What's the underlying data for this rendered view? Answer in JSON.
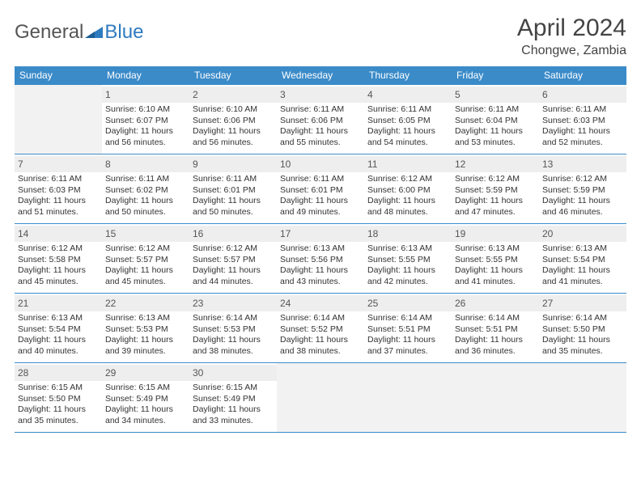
{
  "brand": {
    "part1": "General",
    "part2": "Blue"
  },
  "title": "April 2024",
  "location": "Chongwe, Zambia",
  "colors": {
    "header_bg": "#3b8bc9",
    "header_text": "#ffffff",
    "daynum_bg": "#eeeeee",
    "blank_bg": "#f2f2f2",
    "border": "#3b8bc9",
    "body_text": "#333333",
    "title_text": "#444444",
    "brand_blue": "#2f7bbf"
  },
  "weekdays": [
    "Sunday",
    "Monday",
    "Tuesday",
    "Wednesday",
    "Thursday",
    "Friday",
    "Saturday"
  ],
  "weeks": [
    [
      null,
      {
        "n": "1",
        "sr": "Sunrise: 6:10 AM",
        "ss": "Sunset: 6:07 PM",
        "d1": "Daylight: 11 hours",
        "d2": "and 56 minutes."
      },
      {
        "n": "2",
        "sr": "Sunrise: 6:10 AM",
        "ss": "Sunset: 6:06 PM",
        "d1": "Daylight: 11 hours",
        "d2": "and 56 minutes."
      },
      {
        "n": "3",
        "sr": "Sunrise: 6:11 AM",
        "ss": "Sunset: 6:06 PM",
        "d1": "Daylight: 11 hours",
        "d2": "and 55 minutes."
      },
      {
        "n": "4",
        "sr": "Sunrise: 6:11 AM",
        "ss": "Sunset: 6:05 PM",
        "d1": "Daylight: 11 hours",
        "d2": "and 54 minutes."
      },
      {
        "n": "5",
        "sr": "Sunrise: 6:11 AM",
        "ss": "Sunset: 6:04 PM",
        "d1": "Daylight: 11 hours",
        "d2": "and 53 minutes."
      },
      {
        "n": "6",
        "sr": "Sunrise: 6:11 AM",
        "ss": "Sunset: 6:03 PM",
        "d1": "Daylight: 11 hours",
        "d2": "and 52 minutes."
      }
    ],
    [
      {
        "n": "7",
        "sr": "Sunrise: 6:11 AM",
        "ss": "Sunset: 6:03 PM",
        "d1": "Daylight: 11 hours",
        "d2": "and 51 minutes."
      },
      {
        "n": "8",
        "sr": "Sunrise: 6:11 AM",
        "ss": "Sunset: 6:02 PM",
        "d1": "Daylight: 11 hours",
        "d2": "and 50 minutes."
      },
      {
        "n": "9",
        "sr": "Sunrise: 6:11 AM",
        "ss": "Sunset: 6:01 PM",
        "d1": "Daylight: 11 hours",
        "d2": "and 50 minutes."
      },
      {
        "n": "10",
        "sr": "Sunrise: 6:11 AM",
        "ss": "Sunset: 6:01 PM",
        "d1": "Daylight: 11 hours",
        "d2": "and 49 minutes."
      },
      {
        "n": "11",
        "sr": "Sunrise: 6:12 AM",
        "ss": "Sunset: 6:00 PM",
        "d1": "Daylight: 11 hours",
        "d2": "and 48 minutes."
      },
      {
        "n": "12",
        "sr": "Sunrise: 6:12 AM",
        "ss": "Sunset: 5:59 PM",
        "d1": "Daylight: 11 hours",
        "d2": "and 47 minutes."
      },
      {
        "n": "13",
        "sr": "Sunrise: 6:12 AM",
        "ss": "Sunset: 5:59 PM",
        "d1": "Daylight: 11 hours",
        "d2": "and 46 minutes."
      }
    ],
    [
      {
        "n": "14",
        "sr": "Sunrise: 6:12 AM",
        "ss": "Sunset: 5:58 PM",
        "d1": "Daylight: 11 hours",
        "d2": "and 45 minutes."
      },
      {
        "n": "15",
        "sr": "Sunrise: 6:12 AM",
        "ss": "Sunset: 5:57 PM",
        "d1": "Daylight: 11 hours",
        "d2": "and 45 minutes."
      },
      {
        "n": "16",
        "sr": "Sunrise: 6:12 AM",
        "ss": "Sunset: 5:57 PM",
        "d1": "Daylight: 11 hours",
        "d2": "and 44 minutes."
      },
      {
        "n": "17",
        "sr": "Sunrise: 6:13 AM",
        "ss": "Sunset: 5:56 PM",
        "d1": "Daylight: 11 hours",
        "d2": "and 43 minutes."
      },
      {
        "n": "18",
        "sr": "Sunrise: 6:13 AM",
        "ss": "Sunset: 5:55 PM",
        "d1": "Daylight: 11 hours",
        "d2": "and 42 minutes."
      },
      {
        "n": "19",
        "sr": "Sunrise: 6:13 AM",
        "ss": "Sunset: 5:55 PM",
        "d1": "Daylight: 11 hours",
        "d2": "and 41 minutes."
      },
      {
        "n": "20",
        "sr": "Sunrise: 6:13 AM",
        "ss": "Sunset: 5:54 PM",
        "d1": "Daylight: 11 hours",
        "d2": "and 41 minutes."
      }
    ],
    [
      {
        "n": "21",
        "sr": "Sunrise: 6:13 AM",
        "ss": "Sunset: 5:54 PM",
        "d1": "Daylight: 11 hours",
        "d2": "and 40 minutes."
      },
      {
        "n": "22",
        "sr": "Sunrise: 6:13 AM",
        "ss": "Sunset: 5:53 PM",
        "d1": "Daylight: 11 hours",
        "d2": "and 39 minutes."
      },
      {
        "n": "23",
        "sr": "Sunrise: 6:14 AM",
        "ss": "Sunset: 5:53 PM",
        "d1": "Daylight: 11 hours",
        "d2": "and 38 minutes."
      },
      {
        "n": "24",
        "sr": "Sunrise: 6:14 AM",
        "ss": "Sunset: 5:52 PM",
        "d1": "Daylight: 11 hours",
        "d2": "and 38 minutes."
      },
      {
        "n": "25",
        "sr": "Sunrise: 6:14 AM",
        "ss": "Sunset: 5:51 PM",
        "d1": "Daylight: 11 hours",
        "d2": "and 37 minutes."
      },
      {
        "n": "26",
        "sr": "Sunrise: 6:14 AM",
        "ss": "Sunset: 5:51 PM",
        "d1": "Daylight: 11 hours",
        "d2": "and 36 minutes."
      },
      {
        "n": "27",
        "sr": "Sunrise: 6:14 AM",
        "ss": "Sunset: 5:50 PM",
        "d1": "Daylight: 11 hours",
        "d2": "and 35 minutes."
      }
    ],
    [
      {
        "n": "28",
        "sr": "Sunrise: 6:15 AM",
        "ss": "Sunset: 5:50 PM",
        "d1": "Daylight: 11 hours",
        "d2": "and 35 minutes."
      },
      {
        "n": "29",
        "sr": "Sunrise: 6:15 AM",
        "ss": "Sunset: 5:49 PM",
        "d1": "Daylight: 11 hours",
        "d2": "and 34 minutes."
      },
      {
        "n": "30",
        "sr": "Sunrise: 6:15 AM",
        "ss": "Sunset: 5:49 PM",
        "d1": "Daylight: 11 hours",
        "d2": "and 33 minutes."
      },
      null,
      null,
      null,
      null
    ]
  ]
}
